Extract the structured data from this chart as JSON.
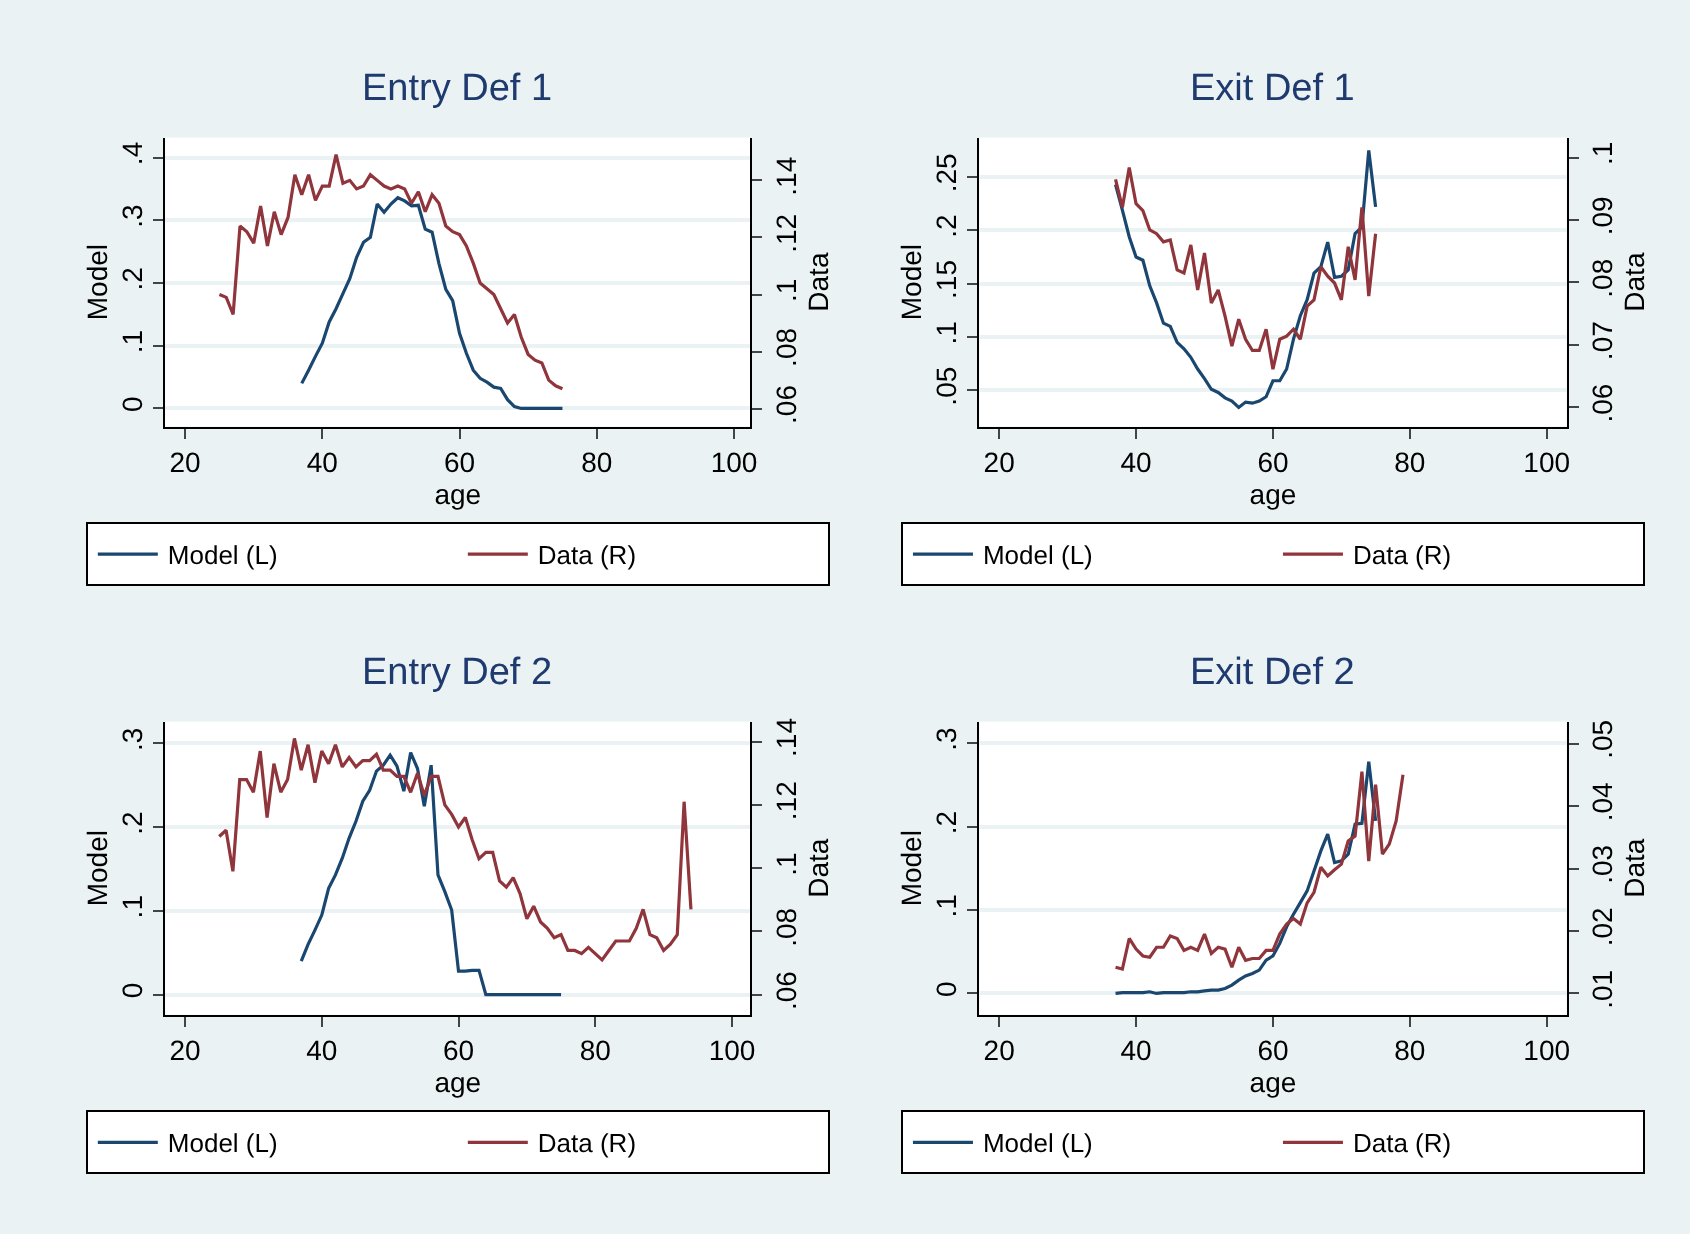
{
  "chart_data": [
    {
      "type": "line",
      "title": "Entry Def 1",
      "xlabel": "age",
      "ylabel": "Model",
      "y2label": "Data",
      "grid": "y",
      "legend": "bottom",
      "xlim": [
        17.1,
        102.4
      ],
      "xticks": [
        20,
        40,
        60,
        80,
        100
      ],
      "ylim": [
        -0.029,
        0.432
      ],
      "yticks": [
        0,
        {
          "value": 0.1,
          "label": ".1"
        },
        {
          "value": 0.2,
          "label": ".2"
        },
        {
          "value": 0.3,
          "label": ".3"
        },
        {
          "value": 0.4,
          "label": ".4"
        }
      ],
      "y2lim": [
        0.0537,
        0.155
      ],
      "y2ticks": [
        {
          "value": 0.06,
          "label": ".06"
        },
        {
          "value": 0.08,
          "label": ".08"
        },
        {
          "value": 0.1,
          "label": ".1"
        },
        {
          "value": 0.12,
          "label": ".12"
        },
        {
          "value": 0.14,
          "label": ".14"
        }
      ],
      "series": [
        {
          "name": "Model (L)",
          "color": "#1a476f",
          "x": [
            37,
            38,
            39,
            40,
            41,
            42,
            43,
            44,
            45,
            46,
            47,
            48,
            49,
            50,
            51,
            52,
            53,
            54,
            55,
            56,
            57,
            58,
            59,
            60,
            61,
            62,
            63,
            64,
            65,
            66,
            67,
            68,
            69,
            70,
            71,
            72,
            73,
            74,
            75
          ],
          "values": [
            0.04,
            0.061,
            0.083,
            0.104,
            0.138,
            0.159,
            0.183,
            0.207,
            0.241,
            0.265,
            0.273,
            0.326,
            0.313,
            0.326,
            0.336,
            0.331,
            0.323,
            0.324,
            0.286,
            0.281,
            0.231,
            0.19,
            0.172,
            0.12,
            0.088,
            0.061,
            0.048,
            0.042,
            0.034,
            0.032,
            0.014,
            0.003,
            0,
            0,
            0,
            0,
            0,
            0,
            0
          ]
        },
        {
          "name": "Data (R)",
          "color": "#90353b",
          "axis": "y2",
          "x": [
            25,
            26,
            27,
            28,
            29,
            30,
            31,
            32,
            33,
            34,
            35,
            36,
            37,
            38,
            39,
            40,
            41,
            42,
            43,
            44,
            45,
            46,
            47,
            48,
            49,
            50,
            51,
            52,
            53,
            54,
            55,
            56,
            57,
            58,
            59,
            60,
            61,
            62,
            63,
            64,
            65,
            66,
            67,
            68,
            69,
            70,
            71,
            72,
            73,
            74,
            75
          ],
          "values": [
            0.1,
            0.099,
            0.093,
            0.124,
            0.122,
            0.118,
            0.131,
            0.117,
            0.129,
            0.121,
            0.127,
            0.142,
            0.135,
            0.142,
            0.133,
            0.138,
            0.138,
            0.149,
            0.139,
            0.14,
            0.137,
            0.138,
            0.142,
            0.14,
            0.138,
            0.137,
            0.138,
            0.137,
            0.132,
            0.136,
            0.129,
            0.135,
            0.132,
            0.124,
            0.122,
            0.121,
            0.117,
            0.111,
            0.104,
            0.102,
            0.1,
            0.095,
            0.09,
            0.093,
            0.085,
            0.079,
            0.077,
            0.076,
            0.07,
            0.068,
            0.067
          ]
        }
      ]
    },
    {
      "type": "line",
      "title": "Exit Def 1",
      "xlabel": "age",
      "ylabel": "Model",
      "y2label": "Data",
      "grid": "y",
      "legend": "bottom",
      "xlim": [
        17.1,
        102.9
      ],
      "xticks": [
        20,
        40,
        60,
        80,
        100
      ],
      "ylim": [
        0.016,
        0.287
      ],
      "yticks": [
        {
          "value": 0.05,
          "label": ".05"
        },
        {
          "value": 0.1,
          "label": ".1"
        },
        {
          "value": 0.15,
          "label": ".15"
        },
        {
          "value": 0.2,
          "label": ".2"
        },
        {
          "value": 0.25,
          "label": ".25"
        }
      ],
      "y2lim": [
        0.0569,
        0.1032
      ],
      "y2ticks": [
        {
          "value": 0.06,
          "label": ".06"
        },
        {
          "value": 0.07,
          "label": ".07"
        },
        {
          "value": 0.08,
          "label": ".08"
        },
        {
          "value": 0.09,
          "label": ".09"
        },
        {
          "value": 0.1,
          "label": ".1"
        }
      ],
      "series": [
        {
          "name": "Model (L)",
          "color": "#1a476f",
          "x": [
            37,
            38,
            39,
            40,
            41,
            42,
            43,
            44,
            45,
            46,
            47,
            48,
            49,
            50,
            51,
            52,
            53,
            54,
            55,
            56,
            57,
            58,
            59,
            60,
            61,
            62,
            63,
            64,
            65,
            66,
            67,
            68,
            69,
            70,
            71,
            72,
            73,
            74,
            75
          ],
          "values": [
            0.243,
            0.219,
            0.194,
            0.175,
            0.172,
            0.148,
            0.132,
            0.113,
            0.11,
            0.095,
            0.089,
            0.081,
            0.07,
            0.061,
            0.051,
            0.048,
            0.043,
            0.04,
            0.034,
            0.039,
            0.038,
            0.04,
            0.044,
            0.059,
            0.059,
            0.07,
            0.098,
            0.12,
            0.135,
            0.16,
            0.166,
            0.189,
            0.156,
            0.157,
            0.163,
            0.197,
            0.203,
            0.275,
            0.222
          ]
        },
        {
          "name": "Data (R)",
          "color": "#90353b",
          "axis": "y2",
          "x": [
            37,
            38,
            39,
            40,
            41,
            42,
            43,
            44,
            45,
            46,
            47,
            48,
            49,
            50,
            51,
            52,
            53,
            54,
            55,
            56,
            57,
            58,
            59,
            60,
            61,
            62,
            63,
            64,
            65,
            66,
            67,
            68,
            69,
            70,
            71,
            72,
            73,
            74,
            75
          ],
          "values": [
            0.0965,
            0.092,
            0.0984,
            0.0926,
            0.0915,
            0.0884,
            0.0878,
            0.0865,
            0.0868,
            0.082,
            0.0815,
            0.086,
            0.0788,
            0.0847,
            0.0767,
            0.0788,
            0.0746,
            0.0698,
            0.0741,
            0.0709,
            0.0691,
            0.0691,
            0.0725,
            0.0661,
            0.0709,
            0.0714,
            0.0725,
            0.0709,
            0.0762,
            0.0772,
            0.0825,
            0.081,
            0.0799,
            0.0772,
            0.0857,
            0.0804,
            0.092,
            0.0778,
            0.0878
          ]
        }
      ]
    },
    {
      "type": "line",
      "title": "Entry Def 2",
      "xlabel": "age",
      "ylabel": "Model",
      "y2label": "Data",
      "grid": "y",
      "legend": "bottom",
      "xlim": [
        17.1,
        102.7
      ],
      "xticks": [
        20,
        40,
        60,
        80,
        100
      ],
      "ylim": [
        -0.024,
        0.326
      ],
      "yticks": [
        0,
        {
          "value": 0.1,
          "label": ".1"
        },
        {
          "value": 0.2,
          "label": ".2"
        },
        {
          "value": 0.3,
          "label": ".3"
        }
      ],
      "y2lim": [
        0.0537,
        0.1463
      ],
      "y2ticks": [
        {
          "value": 0.06,
          "label": ".06"
        },
        {
          "value": 0.08,
          "label": ".08"
        },
        {
          "value": 0.1,
          "label": ".1"
        },
        {
          "value": 0.12,
          "label": ".12"
        },
        {
          "value": 0.14,
          "label": ".14"
        }
      ],
      "series": [
        {
          "name": "Model (L)",
          "color": "#1a476f",
          "x": [
            37,
            38,
            39,
            40,
            41,
            42,
            43,
            44,
            45,
            46,
            47,
            48,
            49,
            50,
            51,
            52,
            53,
            54,
            55,
            56,
            57,
            58,
            59,
            60,
            61,
            62,
            63,
            64,
            65,
            66,
            67,
            68,
            69,
            70,
            71,
            72,
            73,
            74,
            75
          ],
          "values": [
            0.04,
            0.06,
            0.077,
            0.095,
            0.127,
            0.143,
            0.163,
            0.187,
            0.207,
            0.231,
            0.244,
            0.267,
            0.274,
            0.286,
            0.273,
            0.243,
            0.289,
            0.27,
            0.225,
            0.274,
            0.143,
            0.123,
            0.101,
            0.028,
            0.028,
            0.029,
            0.029,
            0,
            0,
            0,
            0,
            0,
            0,
            0,
            0,
            0,
            0,
            0,
            0
          ]
        },
        {
          "name": "Data (R)",
          "color": "#90353b",
          "axis": "y2",
          "x": [
            25,
            26,
            27,
            28,
            29,
            30,
            31,
            32,
            33,
            34,
            35,
            36,
            37,
            38,
            39,
            40,
            41,
            42,
            43,
            44,
            45,
            46,
            47,
            48,
            49,
            50,
            51,
            52,
            53,
            54,
            55,
            56,
            57,
            58,
            59,
            60,
            61,
            62,
            63,
            64,
            65,
            66,
            67,
            68,
            69,
            70,
            71,
            72,
            73,
            74,
            75,
            76,
            77,
            78,
            79,
            80,
            81,
            82,
            83,
            84,
            85,
            86,
            87,
            88,
            89,
            90,
            91,
            92,
            93,
            94
          ],
          "values": [
            0.11,
            0.112,
            0.099,
            0.128,
            0.128,
            0.124,
            0.137,
            0.116,
            0.133,
            0.124,
            0.128,
            0.141,
            0.131,
            0.139,
            0.127,
            0.137,
            0.133,
            0.139,
            0.132,
            0.135,
            0.132,
            0.134,
            0.134,
            0.136,
            0.131,
            0.131,
            0.129,
            0.129,
            0.124,
            0.13,
            0.123,
            0.129,
            0.129,
            0.12,
            0.117,
            0.113,
            0.116,
            0.109,
            0.103,
            0.105,
            0.105,
            0.096,
            0.094,
            0.097,
            0.092,
            0.084,
            0.088,
            0.083,
            0.081,
            0.078,
            0.079,
            0.074,
            0.074,
            0.073,
            0.075,
            0.073,
            0.071,
            0.074,
            0.077,
            0.077,
            0.077,
            0.081,
            0.087,
            0.079,
            0.078,
            0.074,
            0.076,
            0.079,
            0.121,
            0.087
          ]
        }
      ]
    },
    {
      "type": "line",
      "title": "Exit Def 2",
      "xlabel": "age",
      "ylabel": "Model",
      "y2label": "Data",
      "grid": "y",
      "legend": "bottom",
      "xlim": [
        17.1,
        102.9
      ],
      "xticks": [
        20,
        40,
        60,
        80,
        100
      ],
      "ylim": [
        -0.0255,
        0.326
      ],
      "yticks": [
        0,
        {
          "value": 0.1,
          "label": ".1"
        },
        {
          "value": 0.2,
          "label": ".2"
        },
        {
          "value": 0.3,
          "label": ".3"
        }
      ],
      "y2lim": [
        0.0066,
        0.0535
      ],
      "y2ticks": [
        {
          "value": 0.01,
          "label": ".01"
        },
        {
          "value": 0.02,
          "label": ".02"
        },
        {
          "value": 0.03,
          "label": ".03"
        },
        {
          "value": 0.04,
          "label": ".04"
        },
        {
          "value": 0.05,
          "label": ".05"
        }
      ],
      "series": [
        {
          "name": "Model (L)",
          "color": "#1a476f",
          "x": [
            37,
            38,
            39,
            40,
            41,
            42,
            43,
            44,
            45,
            46,
            47,
            48,
            49,
            50,
            51,
            52,
            53,
            54,
            55,
            56,
            57,
            58,
            59,
            60,
            61,
            62,
            63,
            64,
            65,
            66,
            67,
            68,
            69,
            70,
            71,
            72,
            73,
            74,
            75
          ],
          "values": [
            0,
            0.001,
            0.001,
            0.001,
            0.001,
            0.002,
            0,
            0.001,
            0.001,
            0.001,
            0.001,
            0.002,
            0.002,
            0.003,
            0.004,
            0.004,
            0.006,
            0.01,
            0.016,
            0.021,
            0.024,
            0.028,
            0.04,
            0.045,
            0.06,
            0.08,
            0.095,
            0.109,
            0.123,
            0.147,
            0.171,
            0.191,
            0.157,
            0.159,
            0.167,
            0.203,
            0.204,
            0.278,
            0.207
          ]
        },
        {
          "name": "Data (R)",
          "color": "#90353b",
          "axis": "y2",
          "x": [
            37,
            38,
            39,
            40,
            41,
            42,
            43,
            44,
            45,
            46,
            47,
            48,
            49,
            50,
            51,
            52,
            53,
            54,
            55,
            56,
            57,
            58,
            59,
            60,
            61,
            62,
            63,
            64,
            65,
            66,
            67,
            68,
            69,
            70,
            71,
            72,
            73,
            74,
            75,
            76,
            77,
            78,
            79
          ],
          "values": [
            0.0142,
            0.0139,
            0.0188,
            0.0171,
            0.016,
            0.0158,
            0.0174,
            0.0174,
            0.0192,
            0.0188,
            0.0169,
            0.0174,
            0.0169,
            0.0195,
            0.0164,
            0.0174,
            0.0171,
            0.0142,
            0.0174,
            0.0153,
            0.0156,
            0.0156,
            0.0169,
            0.0169,
            0.0195,
            0.0211,
            0.022,
            0.0211,
            0.0245,
            0.0262,
            0.0302,
            0.0288,
            0.0298,
            0.0307,
            0.0344,
            0.0352,
            0.0455,
            0.0312,
            0.0434,
            0.0323,
            0.0339,
            0.0376,
            0.045
          ]
        }
      ]
    }
  ]
}
